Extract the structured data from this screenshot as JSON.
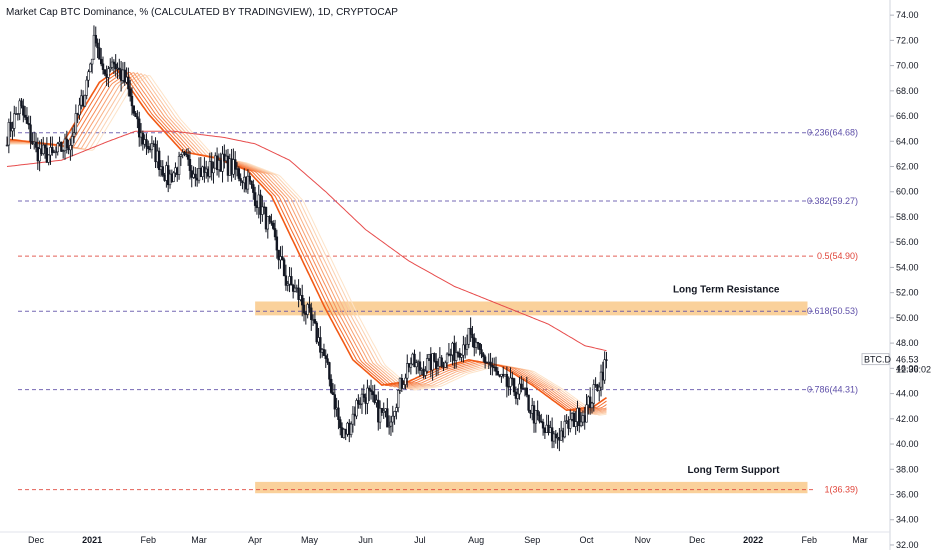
{
  "header": {
    "title": "Market Cap BTC Dominance, % (CALCULATED BY TRADINGVIEW), 1D, CRYPTOCAP"
  },
  "chart_data": {
    "type": "candlestick",
    "symbol": "BTC.D",
    "y_axis": {
      "ylim": [
        31.6,
        75.2
      ],
      "ticks": [
        "74.00",
        "72.00",
        "70.00",
        "68.00",
        "66.00",
        "64.00",
        "62.00",
        "60.00",
        "58.00",
        "56.00",
        "54.00",
        "52.00",
        "50.00",
        "48.00",
        "46.00",
        "44.00",
        "42.00",
        "40.00",
        "38.00",
        "36.00",
        "34.00",
        "32.00"
      ],
      "position": "right"
    },
    "x_axis": {
      "ticks": [
        {
          "label": "Dec",
          "date": "2020-12-01",
          "bold": false
        },
        {
          "label": "2021",
          "date": "2021-01-01",
          "bold": true
        },
        {
          "label": "Feb",
          "date": "2021-02-01",
          "bold": false
        },
        {
          "label": "Mar",
          "date": "2021-03-01",
          "bold": false
        },
        {
          "label": "Apr",
          "date": "2021-04-01",
          "bold": false
        },
        {
          "label": "May",
          "date": "2021-05-01",
          "bold": false
        },
        {
          "label": "Jun",
          "date": "2021-06-01",
          "bold": false
        },
        {
          "label": "Jul",
          "date": "2021-07-01",
          "bold": false
        },
        {
          "label": "Aug",
          "date": "2021-08-01",
          "bold": false
        },
        {
          "label": "Sep",
          "date": "2021-09-01",
          "bold": false
        },
        {
          "label": "Oct",
          "date": "2021-10-01",
          "bold": false
        },
        {
          "label": "Nov",
          "date": "2021-11-01",
          "bold": false
        },
        {
          "label": "Dec",
          "date": "2021-12-01",
          "bold": false
        },
        {
          "label": "2022",
          "date": "2022-01-01",
          "bold": true
        },
        {
          "label": "Feb",
          "date": "2022-02-01",
          "bold": false
        },
        {
          "label": "Mar",
          "date": "2022-03-01",
          "bold": false
        }
      ]
    },
    "price_path": [
      {
        "date": "2020-11-15",
        "value": 64.5
      },
      {
        "date": "2020-11-22",
        "value": 66.8
      },
      {
        "date": "2020-12-01",
        "value": 63.2
      },
      {
        "date": "2020-12-10",
        "value": 62.8
      },
      {
        "date": "2020-12-20",
        "value": 64.0
      },
      {
        "date": "2020-12-28",
        "value": 68.0
      },
      {
        "date": "2021-01-03",
        "value": 72.5
      },
      {
        "date": "2021-01-07",
        "value": 69.0
      },
      {
        "date": "2021-01-12",
        "value": 70.5
      },
      {
        "date": "2021-01-20",
        "value": 68.5
      },
      {
        "date": "2021-01-27",
        "value": 64.5
      },
      {
        "date": "2021-02-05",
        "value": 63.0
      },
      {
        "date": "2021-02-12",
        "value": 61.0
      },
      {
        "date": "2021-02-20",
        "value": 62.5
      },
      {
        "date": "2021-02-26",
        "value": 61.8
      },
      {
        "date": "2021-03-05",
        "value": 61.5
      },
      {
        "date": "2021-03-12",
        "value": 62.5
      },
      {
        "date": "2021-03-20",
        "value": 61.8
      },
      {
        "date": "2021-03-28",
        "value": 60.8
      },
      {
        "date": "2021-04-05",
        "value": 58.5
      },
      {
        "date": "2021-04-12",
        "value": 56.0
      },
      {
        "date": "2021-04-18",
        "value": 53.0
      },
      {
        "date": "2021-04-24",
        "value": 52.0
      },
      {
        "date": "2021-05-01",
        "value": 50.0
      },
      {
        "date": "2021-05-08",
        "value": 47.5
      },
      {
        "date": "2021-05-14",
        "value": 44.0
      },
      {
        "date": "2021-05-19",
        "value": 40.5
      },
      {
        "date": "2021-05-23",
        "value": 41.5
      },
      {
        "date": "2021-05-28",
        "value": 43.5
      },
      {
        "date": "2021-06-02",
        "value": 44.0
      },
      {
        "date": "2021-06-08",
        "value": 42.5
      },
      {
        "date": "2021-06-14",
        "value": 42.0
      },
      {
        "date": "2021-06-20",
        "value": 44.5
      },
      {
        "date": "2021-06-25",
        "value": 46.5
      },
      {
        "date": "2021-07-01",
        "value": 46.0
      },
      {
        "date": "2021-07-08",
        "value": 46.5
      },
      {
        "date": "2021-07-15",
        "value": 46.8
      },
      {
        "date": "2021-07-22",
        "value": 47.5
      },
      {
        "date": "2021-07-28",
        "value": 48.5
      },
      {
        "date": "2021-08-03",
        "value": 47.0
      },
      {
        "date": "2021-08-08",
        "value": 46.5
      },
      {
        "date": "2021-08-14",
        "value": 45.0
      },
      {
        "date": "2021-08-20",
        "value": 44.5
      },
      {
        "date": "2021-08-27",
        "value": 44.0
      },
      {
        "date": "2021-09-03",
        "value": 42.0
      },
      {
        "date": "2021-09-08",
        "value": 41.0
      },
      {
        "date": "2021-09-13",
        "value": 40.5
      },
      {
        "date": "2021-09-18",
        "value": 41.0
      },
      {
        "date": "2021-09-24",
        "value": 42.0
      },
      {
        "date": "2021-09-30",
        "value": 42.5
      },
      {
        "date": "2021-10-05",
        "value": 44.0
      },
      {
        "date": "2021-10-09",
        "value": 45.5
      },
      {
        "date": "2021-10-12",
        "value": 46.53
      }
    ],
    "long_ma": [
      {
        "date": "2020-11-15",
        "value": 62.0
      },
      {
        "date": "2020-12-15",
        "value": 62.5
      },
      {
        "date": "2021-01-10",
        "value": 64.0
      },
      {
        "date": "2021-01-25",
        "value": 64.8
      },
      {
        "date": "2021-02-15",
        "value": 64.8
      },
      {
        "date": "2021-03-15",
        "value": 64.3
      },
      {
        "date": "2021-04-01",
        "value": 63.8
      },
      {
        "date": "2021-04-20",
        "value": 62.5
      },
      {
        "date": "2021-05-10",
        "value": 60.0
      },
      {
        "date": "2021-06-01",
        "value": 57.0
      },
      {
        "date": "2021-06-25",
        "value": 54.5
      },
      {
        "date": "2021-07-20",
        "value": 52.5
      },
      {
        "date": "2021-08-15",
        "value": 51.0
      },
      {
        "date": "2021-09-10",
        "value": 49.5
      },
      {
        "date": "2021-09-30",
        "value": 47.8
      },
      {
        "date": "2021-10-12",
        "value": 47.4
      }
    ],
    "ribbon_ma": [
      {
        "date": "2020-11-15",
        "value": 64.0
      },
      {
        "date": "2020-12-15",
        "value": 63.5
      },
      {
        "date": "2021-01-05",
        "value": 68.5
      },
      {
        "date": "2021-01-15",
        "value": 69.5
      },
      {
        "date": "2021-02-01",
        "value": 66.0
      },
      {
        "date": "2021-02-20",
        "value": 63.0
      },
      {
        "date": "2021-03-10",
        "value": 62.5
      },
      {
        "date": "2021-03-28",
        "value": 61.5
      },
      {
        "date": "2021-04-10",
        "value": 59.5
      },
      {
        "date": "2021-04-25",
        "value": 55.0
      },
      {
        "date": "2021-05-10",
        "value": 50.5
      },
      {
        "date": "2021-05-25",
        "value": 46.5
      },
      {
        "date": "2021-06-10",
        "value": 44.5
      },
      {
        "date": "2021-06-25",
        "value": 44.8
      },
      {
        "date": "2021-07-10",
        "value": 45.8
      },
      {
        "date": "2021-07-28",
        "value": 46.5
      },
      {
        "date": "2021-08-15",
        "value": 46.0
      },
      {
        "date": "2021-09-01",
        "value": 44.5
      },
      {
        "date": "2021-09-20",
        "value": 42.5
      },
      {
        "date": "2021-10-05",
        "value": 42.8
      },
      {
        "date": "2021-10-12",
        "value": 43.5
      }
    ],
    "fib_levels": [
      {
        "label": "0.236(64.68)",
        "value": 64.68,
        "color": "#5d4ea8"
      },
      {
        "label": "0.382(59.27)",
        "value": 59.27,
        "color": "#5d4ea8"
      },
      {
        "label": "0.5(54.90)",
        "value": 54.9,
        "color": "#e0453a"
      },
      {
        "label": "0.618(50.53)",
        "value": 50.53,
        "color": "#5d4ea8"
      },
      {
        "label": "0.786(44.31)",
        "value": 44.31,
        "color": "#5d4ea8"
      },
      {
        "label": "1(36.39)",
        "value": 36.39,
        "color": "#e0453a"
      }
    ],
    "zones": [
      {
        "label": "Long Term Resistance",
        "from": 50.2,
        "to": 51.3,
        "start": "2021-04-01",
        "end": "2022-01-31"
      },
      {
        "label": "Long Term Support",
        "from": 36.1,
        "to": 37.0,
        "start": "2021-04-01",
        "end": "2022-01-31"
      }
    ],
    "last_price": {
      "symbol": "BTC.D",
      "value": "46.53",
      "countdown": "12:36:02"
    },
    "colors": {
      "up": "#ffffff",
      "down": "#131722",
      "long_ma": "#e74c4c",
      "ribbon_from": "#fde3c8",
      "ribbon_to": "#f25a16",
      "zone": "#f9c98a",
      "badge": "#ffffff"
    }
  }
}
